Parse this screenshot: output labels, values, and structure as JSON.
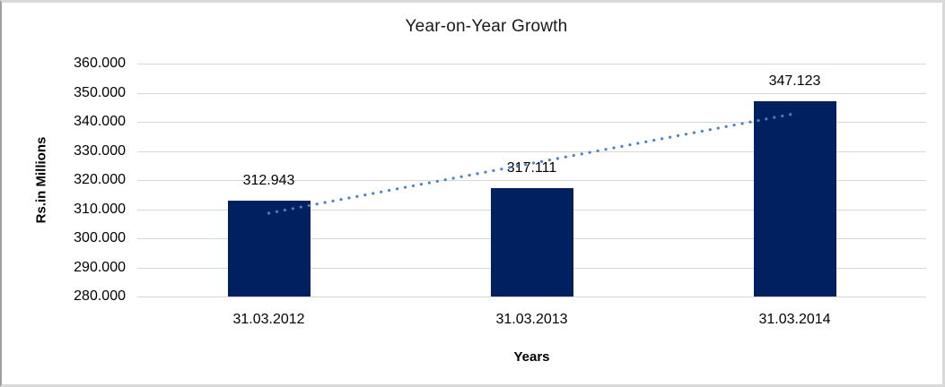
{
  "chart_data": {
    "type": "bar",
    "title": "Year-on-Year Growth",
    "xlabel": "Years",
    "ylabel": "Rs.in Millions",
    "categories": [
      "31.03.2012",
      "31.03.2013",
      "31.03.2014"
    ],
    "values": [
      312.943,
      317.111,
      347.123
    ],
    "data_labels": [
      "312.943",
      "317.111",
      "347.123"
    ],
    "ylim": [
      280,
      360
    ],
    "ytick_step": 10,
    "ytick_labels_top_to_bottom": [
      "360.000",
      "350.000",
      "340.000",
      "330.000",
      "320.000",
      "310.000",
      "300.000",
      "290.000",
      "280.000"
    ],
    "grid": true,
    "legend": "none",
    "trendline": {
      "type": "linear",
      "style": "dotted"
    }
  },
  "colors": {
    "bar": "#002060",
    "trendline": "#4a80c4",
    "gridline": "#d6d6d6",
    "text": "#000000",
    "title_text": "#1a1a1a",
    "background": "#ffffff",
    "frame_border": "#d9d9d9"
  }
}
